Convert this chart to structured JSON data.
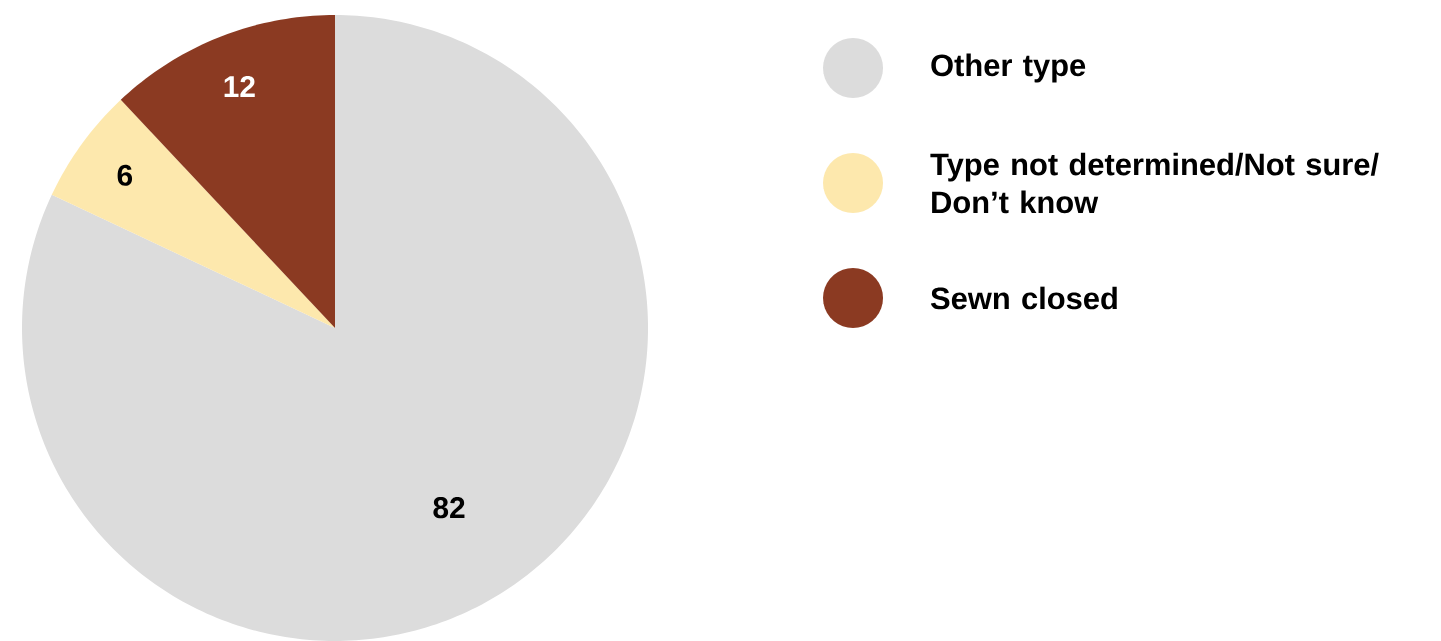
{
  "chart_data": {
    "type": "pie",
    "categories": [
      "Other type",
      "Type not determined/Not sure/ Don’t know",
      "Sewn closed"
    ],
    "values": [
      82,
      6,
      12
    ],
    "colors": [
      "#dcdcdc",
      "#fde8ad",
      "#8b3a22"
    ],
    "data_labels": true,
    "legend": "right"
  }
}
